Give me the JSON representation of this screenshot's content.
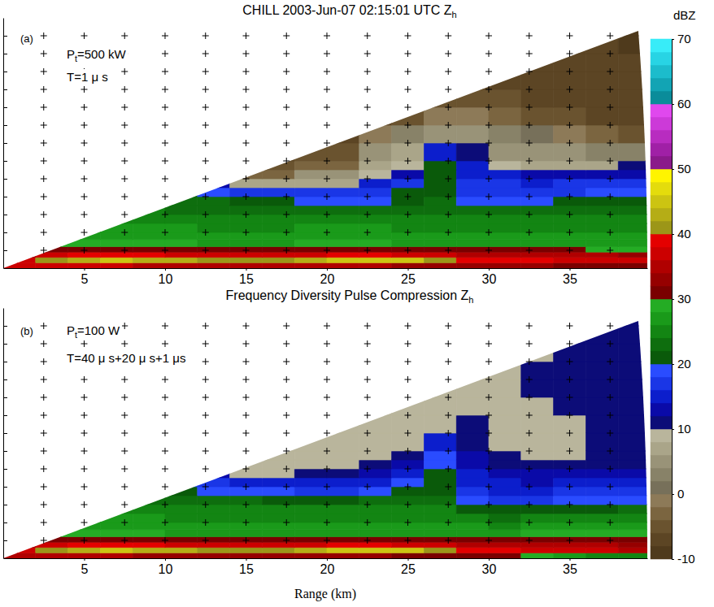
{
  "chart_data": [
    {
      "type": "heatmap",
      "title": "CHILL 2003-Jun-07 02:15:01 UTC Z",
      "title_subscript": "h",
      "annotations": [
        {
          "text": "(a)"
        },
        {
          "text": "P",
          "subscript": "t",
          "suffix": "=500 kW"
        },
        {
          "text": "T=1 μ s"
        }
      ],
      "xlim": [
        0,
        39.8
      ],
      "ylim": [
        0,
        7
      ],
      "xticks": [
        5,
        10,
        15,
        20,
        25,
        30,
        35
      ],
      "x_minor_ticks": [
        2.5,
        7.5,
        12.5,
        17.5,
        22.5,
        27.5,
        32.5,
        37.5
      ],
      "yticks": [
        0.5,
        1,
        1.5,
        2,
        2.5,
        3,
        3.5,
        4,
        4.5,
        5,
        5.5,
        6,
        6.5
      ],
      "tick_labels": "x",
      "grid": true,
      "range_max": 39.8,
      "elevation_max": 9.6,
      "x_edges": [
        0,
        2,
        4,
        6,
        8,
        10,
        12,
        14,
        16,
        18,
        20,
        22,
        24,
        26,
        28,
        30,
        32,
        34,
        36,
        38,
        40
      ],
      "y_edges": [
        0,
        0.15,
        0.3,
        0.45,
        0.6,
        0.8,
        1.0,
        1.25,
        1.5,
        1.75,
        2.0,
        2.25,
        2.5,
        2.75,
        3.0,
        3.5,
        4.0,
        4.5,
        5.0,
        5.5,
        6.0,
        6.5,
        7.0
      ],
      "z": [
        [
          36,
          37,
          37,
          36,
          35,
          35,
          34,
          34,
          34,
          34,
          34,
          34,
          33,
          33,
          33,
          32,
          32,
          31,
          31,
          30
        ],
        [
          36,
          40,
          43,
          44,
          43,
          42,
          41,
          40,
          41,
          42,
          44,
          45,
          44,
          40,
          39,
          38,
          38,
          37,
          37,
          36
        ],
        [
          32,
          36,
          38,
          38,
          38,
          37,
          36,
          36,
          37,
          37,
          38,
          38,
          37,
          36,
          35,
          35,
          35,
          34,
          34,
          33
        ],
        [
          null,
          31,
          31,
          31,
          30,
          30,
          30,
          30,
          30,
          31,
          31,
          31,
          30,
          30,
          30,
          30,
          30,
          30,
          29,
          29
        ],
        [
          null,
          28,
          28,
          28,
          28,
          28,
          27,
          27,
          27,
          28,
          28,
          28,
          27,
          27,
          27,
          27,
          27,
          27,
          27,
          27
        ],
        [
          null,
          null,
          27,
          27,
          27,
          26,
          26,
          26,
          26,
          27,
          27,
          27,
          26,
          26,
          26,
          26,
          26,
          26,
          26,
          26
        ],
        [
          null,
          null,
          26,
          26,
          26,
          26,
          25,
          25,
          25,
          26,
          26,
          26,
          25,
          25,
          25,
          25,
          25,
          25,
          25,
          25
        ],
        [
          null,
          null,
          null,
          25,
          25,
          24,
          24,
          24,
          24,
          24,
          24,
          24,
          24,
          24,
          24,
          24,
          24,
          24,
          24,
          24
        ],
        [
          null,
          null,
          null,
          null,
          24,
          23,
          23,
          23,
          23,
          22,
          22,
          23,
          23,
          23,
          22,
          22,
          22,
          23,
          23,
          23
        ],
        [
          null,
          null,
          null,
          null,
          null,
          22,
          22,
          21,
          21,
          19,
          19,
          19,
          21,
          22,
          19,
          18,
          19,
          20,
          21,
          21
        ],
        [
          null,
          null,
          null,
          null,
          null,
          20,
          18,
          17,
          17,
          16,
          16,
          17,
          20,
          21,
          17,
          16,
          16,
          17,
          18,
          18
        ],
        [
          null,
          null,
          null,
          null,
          null,
          null,
          12,
          6,
          6,
          6,
          6,
          14,
          16,
          21,
          17,
          16,
          15,
          16,
          16,
          16
        ],
        [
          null,
          null,
          null,
          null,
          null,
          null,
          null,
          -4,
          -4,
          4,
          4,
          8,
          12,
          21,
          15,
          14,
          12,
          12,
          12,
          13
        ],
        [
          null,
          null,
          null,
          null,
          null,
          null,
          null,
          null,
          -6,
          -3,
          -3,
          6,
          8,
          20,
          14,
          8,
          6,
          6,
          7,
          10
        ],
        [
          null,
          null,
          null,
          null,
          null,
          null,
          null,
          null,
          -7,
          -6,
          -6,
          4,
          6,
          14,
          10,
          5,
          4,
          4,
          3,
          2
        ],
        [
          null,
          null,
          null,
          null,
          null,
          null,
          null,
          null,
          null,
          null,
          -7,
          -2,
          2,
          4,
          4,
          2,
          0,
          -2,
          -4,
          -5
        ],
        [
          null,
          null,
          null,
          null,
          null,
          null,
          null,
          null,
          null,
          null,
          null,
          -7,
          -5,
          -2,
          -1,
          -3,
          -5,
          -6,
          -7,
          -7
        ],
        [
          null,
          null,
          null,
          null,
          null,
          null,
          null,
          null,
          null,
          null,
          null,
          null,
          null,
          -6,
          -5,
          -6,
          -7,
          -8,
          -8,
          -8
        ],
        [
          null,
          null,
          null,
          null,
          null,
          null,
          null,
          null,
          null,
          null,
          null,
          null,
          null,
          null,
          -7,
          -7,
          -8,
          -8,
          -8,
          -8
        ],
        [
          null,
          null,
          null,
          null,
          null,
          null,
          null,
          null,
          null,
          null,
          null,
          null,
          null,
          null,
          null,
          null,
          -8,
          -8,
          -8,
          -8
        ],
        [
          null,
          null,
          null,
          null,
          null,
          null,
          null,
          null,
          null,
          null,
          null,
          null,
          null,
          null,
          null,
          null,
          null,
          -8,
          -8,
          -9
        ],
        [
          null,
          null,
          null,
          null,
          null,
          null,
          null,
          null,
          null,
          null,
          null,
          null,
          null,
          null,
          null,
          null,
          null,
          null,
          null,
          -9
        ]
      ],
      "colorbar": {
        "label": "dBZ",
        "range": [
          -10,
          70
        ],
        "ticks": [
          -10,
          0,
          10,
          20,
          30,
          40,
          50,
          60,
          70
        ],
        "levels": [
          -10,
          -8,
          -6,
          -4,
          -2,
          0,
          2,
          4,
          6,
          8,
          10,
          12,
          14,
          16,
          18,
          20,
          22,
          24,
          26,
          28,
          30,
          32,
          34,
          36,
          38,
          40,
          42,
          44,
          46,
          48,
          50,
          52,
          54,
          56,
          58,
          60,
          62,
          64,
          66,
          68,
          70
        ],
        "colors": [
          "#4f3a1c",
          "#5c4524",
          "#6a532f",
          "#7b6540",
          "#8d7a58",
          "#77705a",
          "#888268",
          "#999378",
          "#aaa589",
          "#b9b59c",
          "#0c0c78",
          "#0a0aa8",
          "#0c1ecc",
          "#1a36e6",
          "#2a4cff",
          "#0a5a0a",
          "#0e6e0e",
          "#138513",
          "#1a9a1a",
          "#24ac24",
          "#7a0000",
          "#960000",
          "#b00000",
          "#cc0000",
          "#e40000",
          "#9c9618",
          "#b5ad16",
          "#ccc412",
          "#e4dc0c",
          "#fff400",
          "#8a1a8a",
          "#a020a6",
          "#b82cc0",
          "#cc3ad8",
          "#e048ee",
          "#0a8c9a",
          "#12a4b4",
          "#1cbccc",
          "#28d4e4",
          "#38ecf8"
        ]
      }
    },
    {
      "type": "heatmap",
      "title": "Frequency Diversity Pulse Compression Z",
      "title_subscript": "h",
      "annotations": [
        {
          "text": "(b)"
        },
        {
          "text": "P",
          "subscript": "t",
          "suffix": "=100 W"
        },
        {
          "text": "T=40 μ s+20 μ s+1 μs"
        }
      ],
      "x_label": "Range (km)",
      "xlim": [
        0,
        39.8
      ],
      "ylim": [
        0,
        7
      ],
      "xticks": [
        5,
        10,
        15,
        20,
        25,
        30,
        35
      ],
      "x_minor_ticks": [
        2.5,
        7.5,
        12.5,
        17.5,
        22.5,
        27.5,
        32.5,
        37.5
      ],
      "yticks": [
        0.5,
        1,
        1.5,
        2,
        2.5,
        3,
        3.5,
        4,
        4.5,
        5,
        5.5,
        6,
        6.5
      ],
      "tick_labels": "x",
      "grid": true,
      "range_max": 39.8,
      "elevation_max": 9.6,
      "x_edges": [
        0,
        2,
        4,
        6,
        8,
        10,
        12,
        14,
        16,
        18,
        20,
        22,
        24,
        26,
        28,
        30,
        32,
        34,
        36,
        38,
        40
      ],
      "y_edges": [
        0,
        0.15,
        0.3,
        0.45,
        0.6,
        0.8,
        1.0,
        1.25,
        1.5,
        1.75,
        2.0,
        2.25,
        2.5,
        2.75,
        3.0,
        3.5,
        4.0,
        4.5,
        5.0,
        5.5,
        6.0,
        6.5,
        7.0
      ],
      "z": [
        [
          34,
          35,
          35,
          34,
          33,
          33,
          32,
          32,
          32,
          32,
          32,
          32,
          31,
          31,
          31,
          30,
          28,
          26,
          25,
          24
        ],
        [
          36,
          40,
          43,
          44,
          43,
          42,
          41,
          40,
          41,
          42,
          44,
          45,
          44,
          40,
          38,
          38,
          37,
          36,
          36,
          35
        ],
        [
          32,
          36,
          38,
          38,
          38,
          37,
          36,
          36,
          37,
          37,
          38,
          38,
          37,
          36,
          35,
          35,
          35,
          34,
          34,
          33
        ],
        [
          null,
          30,
          30,
          30,
          30,
          30,
          30,
          30,
          30,
          30,
          30,
          30,
          30,
          30,
          30,
          30,
          31,
          31,
          31,
          31
        ],
        [
          null,
          28,
          28,
          28,
          28,
          27,
          27,
          27,
          27,
          27,
          27,
          27,
          27,
          27,
          27,
          27,
          28,
          28,
          28,
          28
        ],
        [
          null,
          null,
          27,
          27,
          26,
          26,
          26,
          26,
          26,
          26,
          26,
          26,
          26,
          26,
          26,
          25,
          26,
          26,
          26,
          26
        ],
        [
          null,
          null,
          26,
          26,
          26,
          25,
          25,
          25,
          25,
          25,
          25,
          25,
          25,
          25,
          24,
          23,
          24,
          24,
          24,
          24
        ],
        [
          null,
          null,
          null,
          25,
          24,
          24,
          24,
          24,
          24,
          24,
          24,
          24,
          24,
          24,
          21,
          20,
          21,
          21,
          21,
          22
        ],
        [
          null,
          null,
          null,
          null,
          23,
          22,
          22,
          22,
          21,
          21,
          21,
          22,
          22,
          22,
          18,
          17,
          17,
          18,
          18,
          19
        ],
        [
          null,
          null,
          null,
          null,
          null,
          21,
          19,
          18,
          18,
          17,
          17,
          18,
          20,
          21,
          16,
          15,
          15,
          16,
          16,
          16
        ],
        [
          null,
          null,
          null,
          null,
          null,
          18,
          16,
          15,
          15,
          14,
          14,
          15,
          18,
          20,
          15,
          14,
          13,
          14,
          14,
          14
        ],
        [
          null,
          null,
          null,
          null,
          null,
          null,
          12,
          9,
          9,
          10,
          11,
          13,
          15,
          20,
          14,
          12,
          12,
          12,
          12,
          12
        ],
        [
          null,
          null,
          null,
          null,
          null,
          null,
          null,
          8,
          8,
          8,
          9,
          10,
          12,
          19,
          13,
          11,
          10,
          10,
          11,
          11
        ],
        [
          null,
          null,
          null,
          null,
          null,
          null,
          null,
          null,
          8,
          8,
          8,
          9,
          10,
          18,
          12,
          10,
          9,
          9,
          10,
          11
        ],
        [
          null,
          null,
          null,
          null,
          null,
          null,
          null,
          null,
          8,
          8,
          8,
          8,
          9,
          14,
          11,
          9,
          9,
          9,
          10,
          11
        ],
        [
          null,
          null,
          null,
          null,
          null,
          null,
          null,
          null,
          null,
          null,
          8,
          8,
          8,
          9,
          10,
          9,
          9,
          9,
          10,
          11
        ],
        [
          null,
          null,
          null,
          null,
          null,
          null,
          null,
          null,
          null,
          null,
          null,
          8,
          8,
          8,
          9,
          9,
          9,
          10,
          10,
          10
        ],
        [
          null,
          null,
          null,
          null,
          null,
          null,
          null,
          null,
          null,
          null,
          null,
          null,
          null,
          8,
          9,
          9,
          10,
          10,
          11,
          10
        ],
        [
          null,
          null,
          null,
          null,
          null,
          null,
          null,
          null,
          null,
          null,
          null,
          null,
          null,
          null,
          9,
          9,
          10,
          10,
          11,
          10
        ],
        [
          null,
          null,
          null,
          null,
          null,
          null,
          null,
          null,
          null,
          null,
          null,
          null,
          null,
          null,
          null,
          null,
          9,
          10,
          11,
          10
        ],
        [
          null,
          null,
          null,
          null,
          null,
          null,
          null,
          null,
          null,
          null,
          null,
          null,
          null,
          null,
          null,
          null,
          null,
          10,
          11,
          10
        ],
        [
          null,
          null,
          null,
          null,
          null,
          null,
          null,
          null,
          null,
          null,
          null,
          null,
          null,
          null,
          null,
          null,
          null,
          null,
          null,
          10
        ]
      ]
    }
  ]
}
